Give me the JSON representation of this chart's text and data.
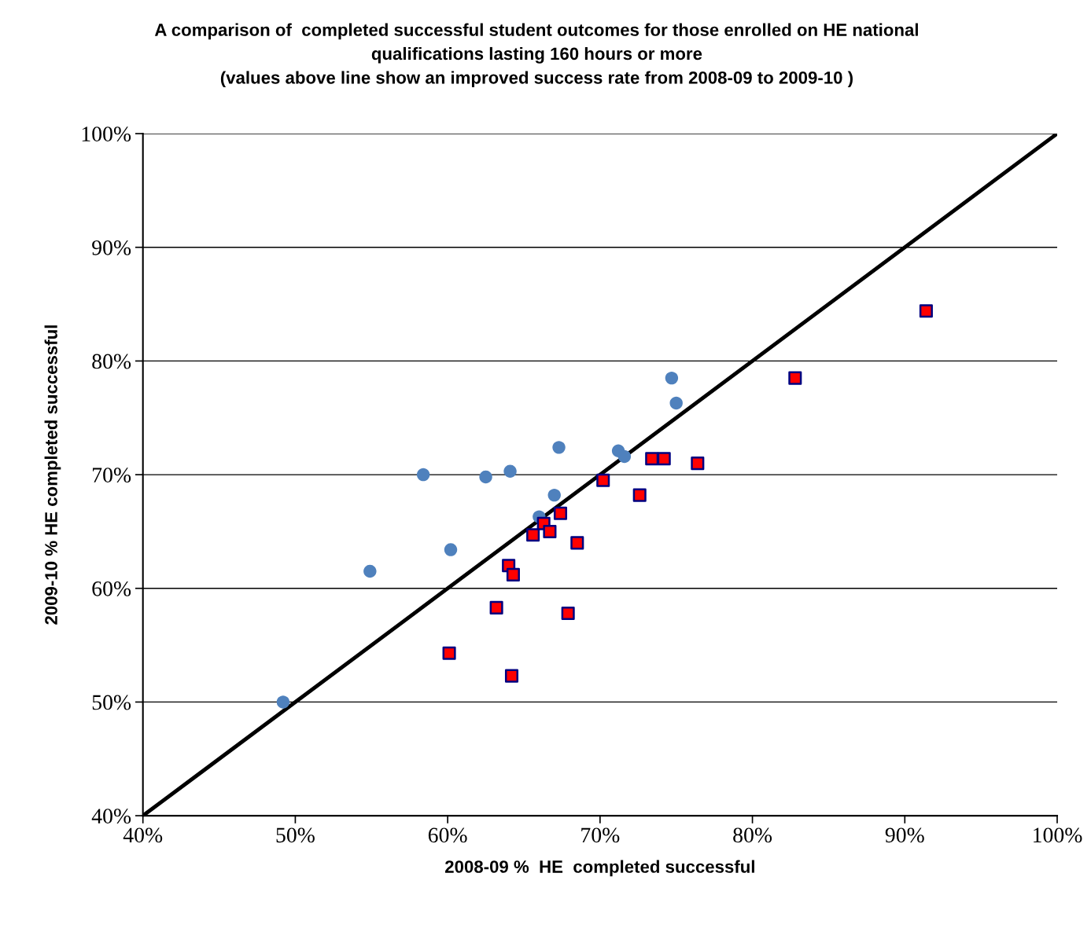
{
  "chart_data": {
    "type": "scatter",
    "title": "A comparison of  completed successful student outcomes for those enrolled on HE national\nqualifications lasting 160 hours or more\n(values above line show an improved success rate from 2008-09 to 2009-10 )",
    "xlabel": "2008-09 %  HE  completed successful",
    "ylabel": "2009-10 % HE completed successful",
    "xlim": [
      40,
      100
    ],
    "ylim": [
      40,
      100
    ],
    "xticks": [
      {
        "value": 40,
        "label": "40%"
      },
      {
        "value": 50,
        "label": "50%"
      },
      {
        "value": 60,
        "label": "60%"
      },
      {
        "value": 70,
        "label": "70%"
      },
      {
        "value": 80,
        "label": "80%"
      },
      {
        "value": 90,
        "label": "90%"
      },
      {
        "value": 100,
        "label": "100%"
      }
    ],
    "yticks": [
      {
        "value": 40,
        "label": "40%"
      },
      {
        "value": 50,
        "label": "50%"
      },
      {
        "value": 60,
        "label": "60%"
      },
      {
        "value": 70,
        "label": "70%"
      },
      {
        "value": 80,
        "label": "80%"
      },
      {
        "value": 90,
        "label": "90%"
      },
      {
        "value": 100,
        "label": "100%"
      }
    ],
    "grid": "y",
    "series": [
      {
        "marker": "circle",
        "color": "#4f81bd",
        "x": [
          49.2,
          54.9,
          58.4,
          60.2,
          62.5,
          64.1,
          66.0,
          67.0,
          67.3,
          71.2,
          71.6,
          74.7,
          75.0
        ],
        "values": [
          50.0,
          61.5,
          70.0,
          63.4,
          69.8,
          70.3,
          66.3,
          68.2,
          72.4,
          72.1,
          71.6,
          78.5,
          76.3
        ]
      },
      {
        "marker": "square",
        "color": "#ff0000",
        "x": [
          60.1,
          63.2,
          64.0,
          64.3,
          64.2,
          65.6,
          66.3,
          66.7,
          67.4,
          67.9,
          68.5,
          70.2,
          72.6,
          73.4,
          74.2,
          76.4,
          82.8,
          91.4
        ],
        "values": [
          54.3,
          58.3,
          62.0,
          61.2,
          52.3,
          64.7,
          65.7,
          65.0,
          66.6,
          57.8,
          64.0,
          69.5,
          68.2,
          71.4,
          71.4,
          71.0,
          78.5,
          84.4
        ]
      },
      {
        "type": "line",
        "marker": "none",
        "line_style": "solid",
        "color": "#000000",
        "x": [
          40,
          100
        ],
        "values": [
          40,
          100
        ]
      }
    ]
  }
}
